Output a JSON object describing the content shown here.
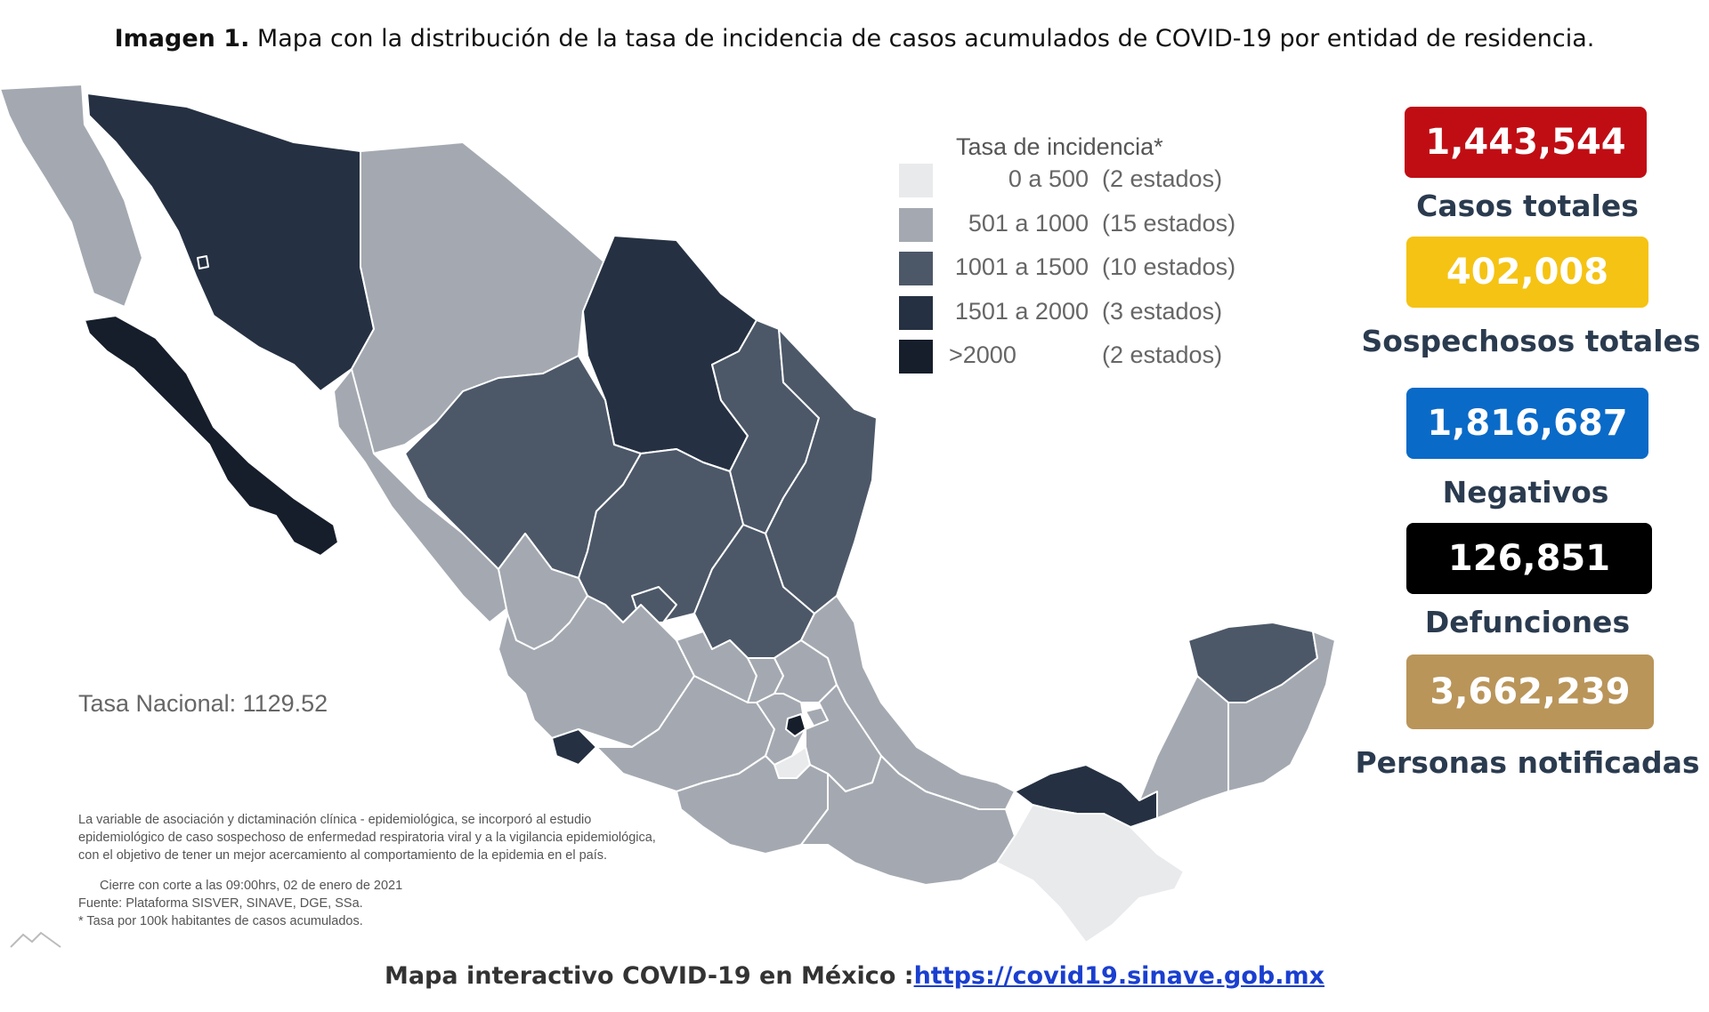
{
  "caption": {
    "prefix": "Imagen 1.",
    "text": " Mapa con la distribución de la tasa de incidencia de casos acumulados de COVID-19 por entidad de residencia."
  },
  "legend": {
    "title": "Tasa de incidencia*",
    "items": [
      {
        "range": "0 a   500",
        "count": "(2 estados)",
        "color": "#e9eaec"
      },
      {
        "range": "501 a  1000",
        "count": "(15 estados)",
        "color": "#a4a9b1"
      },
      {
        "range": "1001 a  1500",
        "count": "(10 estados)",
        "color": "#4c5868"
      },
      {
        "range": "1501 a  2000",
        "count": "(3 estados)",
        "color": "#253142"
      },
      {
        "range": ">2000",
        "count": "(2 estados)",
        "color": "#151e2a"
      }
    ]
  },
  "tasa_nacional": "Tasa Nacional: 1129.52",
  "notes": {
    "line1": "La variable de asociación y dictaminación clínica - epidemiológica, se incorporó al estudio",
    "line2": "epidemiológico de caso sospechoso de enfermedad respiratoria viral y a la vigilancia epidemiológica,",
    "line3": "con el objetivo de tener un mejor acercamiento al comportamiento de la epidemia en el país.",
    "cierre": "Cierre con corte a las 09:00hrs, 02 de enero de 2021",
    "fuente": "Fuente: Plataforma SISVER, SINAVE, DGE, SSa.",
    "tasa_note": "* Tasa por 100k habitantes de casos acumulados."
  },
  "stats": [
    {
      "value": "1,443,544",
      "label": "Casos totales",
      "color": "#c00d14"
    },
    {
      "value": "402,008",
      "label": "Sospechosos totales",
      "color": "#f5c313"
    },
    {
      "value": "1,816,687",
      "label": "Negativos",
      "color": "#0a6ac7"
    },
    {
      "value": "126,851",
      "label": "Defunciones",
      "color": "#000000"
    },
    {
      "value": "3,662,239",
      "label": "Personas notificadas",
      "color": "#b9955a"
    }
  ],
  "footer": {
    "text": "Mapa interactivo COVID-19 en México :",
    "link": "https://covid19.sinave.gob.mx"
  }
}
